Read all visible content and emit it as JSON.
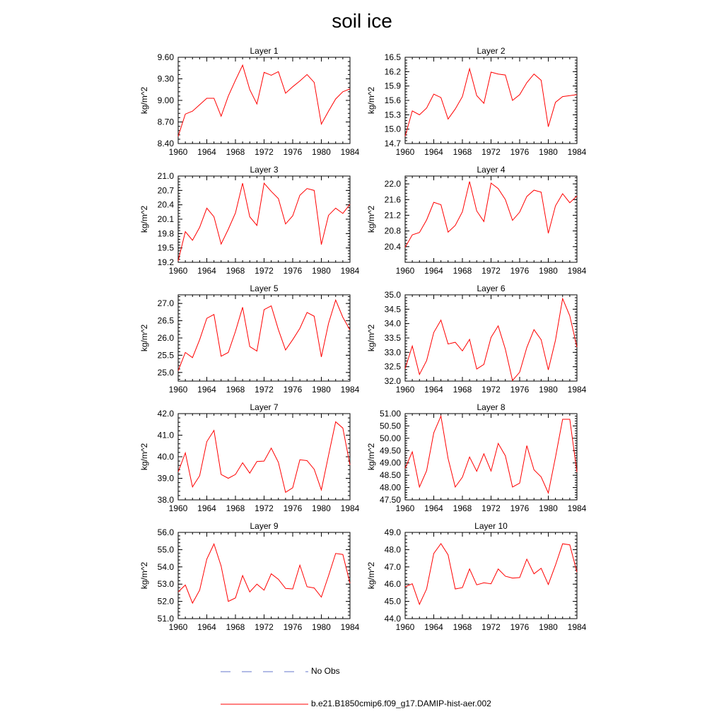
{
  "page": {
    "title": "soil ice"
  },
  "legend": {
    "entries": [
      {
        "label": "No Obs",
        "color": "#6677cc",
        "dash": "dashed"
      },
      {
        "label": "b.e21.B1850cmip6.f09_g17.DAMIP-hist-aer.002",
        "color": "#ff0000",
        "dash": "solid"
      }
    ]
  },
  "chart_data": [
    {
      "type": "line",
      "title": "Layer 1",
      "ylabel": "kg/m^2",
      "xlim": [
        1960,
        1984
      ],
      "ylim": [
        8.4,
        9.6
      ],
      "xticks": [
        1960,
        1964,
        1968,
        1972,
        1976,
        1980,
        1984
      ],
      "yticks": [
        8.4,
        8.7,
        9.0,
        9.3,
        9.6
      ],
      "ytick_decimals": 2,
      "x": [
        1960,
        1961,
        1962,
        1963,
        1964,
        1965,
        1966,
        1967,
        1968,
        1969,
        1970,
        1971,
        1972,
        1973,
        1974,
        1975,
        1976,
        1977,
        1978,
        1979,
        1980,
        1981,
        1982,
        1983,
        1984
      ],
      "series": [
        {
          "color": "#ff0000",
          "values": [
            8.5,
            8.81,
            8.85,
            8.94,
            9.03,
            9.03,
            8.78,
            9.06,
            9.28,
            9.49,
            9.15,
            8.95,
            9.39,
            9.35,
            9.4,
            9.1,
            9.19,
            9.27,
            9.36,
            9.25,
            8.67,
            8.85,
            9.02,
            9.12,
            9.16
          ]
        }
      ]
    },
    {
      "type": "line",
      "title": "Layer 2",
      "ylabel": "kg/m^2",
      "xlim": [
        1960,
        1984
      ],
      "ylim": [
        14.7,
        16.5
      ],
      "xticks": [
        1960,
        1964,
        1968,
        1972,
        1976,
        1980,
        1984
      ],
      "yticks": [
        14.7,
        15.0,
        15.3,
        15.6,
        15.9,
        16.2,
        16.5
      ],
      "ytick_decimals": 1,
      "x": [
        1960,
        1961,
        1962,
        1963,
        1964,
        1965,
        1966,
        1967,
        1968,
        1969,
        1970,
        1971,
        1972,
        1973,
        1974,
        1975,
        1976,
        1977,
        1978,
        1979,
        1980,
        1981,
        1982,
        1983,
        1984
      ],
      "series": [
        {
          "color": "#ff0000",
          "values": [
            14.85,
            15.38,
            15.3,
            15.44,
            15.73,
            15.66,
            15.21,
            15.42,
            15.68,
            16.26,
            15.7,
            15.54,
            16.19,
            16.15,
            16.13,
            15.6,
            15.72,
            15.97,
            16.15,
            16.02,
            15.05,
            15.56,
            15.68,
            15.7,
            15.72
          ]
        }
      ]
    },
    {
      "type": "line",
      "title": "Layer 3",
      "ylabel": "kg/m^2",
      "xlim": [
        1960,
        1984
      ],
      "ylim": [
        19.2,
        21.0
      ],
      "xticks": [
        1960,
        1964,
        1968,
        1972,
        1976,
        1980,
        1984
      ],
      "yticks": [
        19.2,
        19.5,
        19.8,
        20.1,
        20.4,
        20.7,
        21.0
      ],
      "ytick_decimals": 1,
      "x": [
        1960,
        1961,
        1962,
        1963,
        1964,
        1965,
        1966,
        1967,
        1968,
        1969,
        1970,
        1971,
        1972,
        1973,
        1974,
        1975,
        1976,
        1977,
        1978,
        1979,
        1980,
        1981,
        1982,
        1983,
        1984
      ],
      "series": [
        {
          "color": "#ff0000",
          "values": [
            19.23,
            19.84,
            19.66,
            19.93,
            20.33,
            20.15,
            19.58,
            19.89,
            20.23,
            20.85,
            20.15,
            19.97,
            20.85,
            20.68,
            20.53,
            20.0,
            20.17,
            20.6,
            20.74,
            20.7,
            19.57,
            20.18,
            20.33,
            20.22,
            20.41
          ]
        }
      ]
    },
    {
      "type": "line",
      "title": "Layer 4",
      "ylabel": "kg/m^2",
      "xlim": [
        1960,
        1984
      ],
      "ylim": [
        20.0,
        22.2
      ],
      "xticks": [
        1960,
        1964,
        1968,
        1972,
        1976,
        1980,
        1984
      ],
      "yticks": [
        20.4,
        20.8,
        21.2,
        21.6,
        22.0
      ],
      "ytick_decimals": 1,
      "x": [
        1960,
        1961,
        1962,
        1963,
        1964,
        1965,
        1966,
        1967,
        1968,
        1969,
        1970,
        1971,
        1972,
        1973,
        1974,
        1975,
        1976,
        1977,
        1978,
        1979,
        1980,
        1981,
        1982,
        1983,
        1984
      ],
      "series": [
        {
          "color": "#ff0000",
          "values": [
            20.38,
            20.7,
            20.76,
            21.08,
            21.53,
            21.47,
            20.77,
            20.94,
            21.29,
            22.06,
            21.31,
            21.04,
            22.02,
            21.88,
            21.6,
            21.07,
            21.28,
            21.68,
            21.84,
            21.79,
            20.74,
            21.44,
            21.75,
            21.52,
            21.69
          ]
        }
      ]
    },
    {
      "type": "line",
      "title": "Layer 5",
      "ylabel": "kg/m^2",
      "xlim": [
        1960,
        1984
      ],
      "ylim": [
        24.75,
        27.25
      ],
      "xticks": [
        1960,
        1964,
        1968,
        1972,
        1976,
        1980,
        1984
      ],
      "yticks": [
        25.0,
        25.5,
        26.0,
        26.5,
        27.0
      ],
      "ytick_decimals": 1,
      "x": [
        1960,
        1961,
        1962,
        1963,
        1964,
        1965,
        1966,
        1967,
        1968,
        1969,
        1970,
        1971,
        1972,
        1973,
        1974,
        1975,
        1976,
        1977,
        1978,
        1979,
        1980,
        1981,
        1982,
        1983,
        1984
      ],
      "series": [
        {
          "color": "#ff0000",
          "values": [
            25.05,
            25.58,
            25.43,
            25.95,
            26.57,
            26.68,
            25.47,
            25.58,
            26.19,
            26.89,
            25.75,
            25.62,
            26.82,
            26.93,
            26.24,
            25.65,
            25.95,
            26.28,
            26.74,
            26.63,
            25.45,
            26.42,
            27.1,
            26.6,
            26.23
          ]
        }
      ]
    },
    {
      "type": "line",
      "title": "Layer 6",
      "ylabel": "kg/m^2",
      "xlim": [
        1960,
        1984
      ],
      "ylim": [
        32.0,
        35.0
      ],
      "xticks": [
        1960,
        1964,
        1968,
        1972,
        1976,
        1980,
        1984
      ],
      "yticks": [
        32.0,
        32.5,
        33.0,
        33.5,
        34.0,
        34.5,
        35.0
      ],
      "ytick_decimals": 1,
      "x": [
        1960,
        1961,
        1962,
        1963,
        1964,
        1965,
        1966,
        1967,
        1968,
        1969,
        1970,
        1971,
        1972,
        1973,
        1974,
        1975,
        1976,
        1977,
        1978,
        1979,
        1980,
        1981,
        1982,
        1983,
        1984
      ],
      "series": [
        {
          "color": "#ff0000",
          "values": [
            32.43,
            33.22,
            32.23,
            32.71,
            33.69,
            34.12,
            33.29,
            33.35,
            33.05,
            33.45,
            32.42,
            32.58,
            33.52,
            33.92,
            33.11,
            32.02,
            32.31,
            33.17,
            33.79,
            33.44,
            32.39,
            33.42,
            34.87,
            34.27,
            33.18
          ]
        }
      ]
    },
    {
      "type": "line",
      "title": "Layer 7",
      "ylabel": "kg/m^2",
      "xlim": [
        1960,
        1984
      ],
      "ylim": [
        38.0,
        42.0
      ],
      "xticks": [
        1960,
        1964,
        1968,
        1972,
        1976,
        1980,
        1984
      ],
      "yticks": [
        38.0,
        39.0,
        40.0,
        41.0,
        42.0
      ],
      "ytick_decimals": 1,
      "x": [
        1960,
        1961,
        1962,
        1963,
        1964,
        1965,
        1966,
        1967,
        1968,
        1969,
        1970,
        1971,
        1972,
        1973,
        1974,
        1975,
        1976,
        1977,
        1978,
        1979,
        1980,
        1981,
        1982,
        1983,
        1984
      ],
      "series": [
        {
          "color": "#ff0000",
          "values": [
            39.3,
            40.18,
            38.6,
            39.12,
            40.7,
            41.22,
            39.18,
            39.0,
            39.18,
            39.72,
            39.24,
            39.78,
            39.8,
            40.4,
            39.74,
            38.35,
            38.56,
            39.86,
            39.82,
            39.42,
            38.46,
            40.06,
            41.62,
            41.33,
            39.62
          ]
        }
      ]
    },
    {
      "type": "line",
      "title": "Layer 8",
      "ylabel": "kg/m^2",
      "xlim": [
        1960,
        1984
      ],
      "ylim": [
        47.5,
        51.0
      ],
      "xticks": [
        1960,
        1964,
        1968,
        1972,
        1976,
        1980,
        1984
      ],
      "yticks": [
        47.5,
        48.0,
        48.5,
        49.0,
        49.5,
        50.0,
        50.5,
        51.0
      ],
      "ytick_decimals": 2,
      "x": [
        1960,
        1961,
        1962,
        1963,
        1964,
        1965,
        1966,
        1967,
        1968,
        1969,
        1970,
        1971,
        1972,
        1973,
        1974,
        1975,
        1976,
        1977,
        1978,
        1979,
        1980,
        1981,
        1982,
        1983,
        1984
      ],
      "series": [
        {
          "color": "#ff0000",
          "values": [
            48.78,
            49.45,
            48.02,
            48.68,
            50.22,
            50.9,
            49.18,
            48.02,
            48.42,
            49.24,
            48.66,
            49.37,
            48.67,
            49.79,
            49.29,
            48.02,
            48.18,
            49.7,
            48.72,
            48.43,
            47.78,
            49.23,
            50.77,
            50.77,
            48.63
          ]
        }
      ]
    },
    {
      "type": "line",
      "title": "Layer 9",
      "ylabel": "kg/m^2",
      "xlim": [
        1960,
        1984
      ],
      "ylim": [
        51.0,
        56.0
      ],
      "xticks": [
        1960,
        1964,
        1968,
        1972,
        1976,
        1980,
        1984
      ],
      "yticks": [
        51.0,
        52.0,
        53.0,
        54.0,
        55.0,
        56.0
      ],
      "ytick_decimals": 1,
      "x": [
        1960,
        1961,
        1962,
        1963,
        1964,
        1965,
        1966,
        1967,
        1968,
        1969,
        1970,
        1971,
        1972,
        1973,
        1974,
        1975,
        1976,
        1977,
        1978,
        1979,
        1980,
        1981,
        1982,
        1983,
        1984
      ],
      "series": [
        {
          "color": "#ff0000",
          "values": [
            52.55,
            52.95,
            51.9,
            52.65,
            54.45,
            55.33,
            54.05,
            52.0,
            52.2,
            53.5,
            52.55,
            53.0,
            52.65,
            53.6,
            53.28,
            52.75,
            52.72,
            54.1,
            52.85,
            52.78,
            52.25,
            53.48,
            54.78,
            54.72,
            53.05
          ]
        }
      ]
    },
    {
      "type": "line",
      "title": "Layer 10",
      "ylabel": "kg/m^2",
      "xlim": [
        1960,
        1984
      ],
      "ylim": [
        44.0,
        49.0
      ],
      "xticks": [
        1960,
        1964,
        1968,
        1972,
        1976,
        1980,
        1984
      ],
      "yticks": [
        44.0,
        45.0,
        46.0,
        47.0,
        48.0,
        49.0
      ],
      "ytick_decimals": 1,
      "x": [
        1960,
        1961,
        1962,
        1963,
        1964,
        1965,
        1966,
        1967,
        1968,
        1969,
        1970,
        1971,
        1972,
        1973,
        1974,
        1975,
        1976,
        1977,
        1978,
        1979,
        1980,
        1981,
        1982,
        1983,
        1984
      ],
      "series": [
        {
          "color": "#ff0000",
          "values": [
            45.85,
            46.02,
            44.83,
            45.72,
            47.78,
            48.35,
            47.7,
            45.72,
            45.8,
            46.88,
            45.96,
            46.08,
            46.02,
            46.88,
            46.46,
            46.35,
            46.38,
            47.45,
            46.6,
            46.92,
            45.98,
            47.1,
            48.34,
            48.28,
            46.7
          ]
        }
      ]
    }
  ]
}
